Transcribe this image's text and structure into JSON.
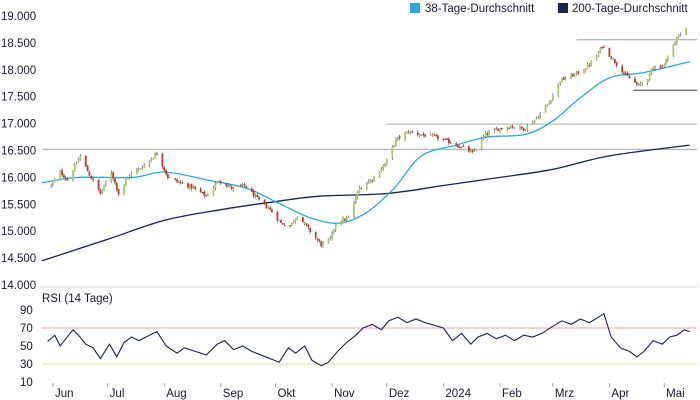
{
  "chart_data": [
    {
      "type": "candlestick",
      "y_ticks": [
        "19.000",
        "18.500",
        "18.000",
        "17.500",
        "17.000",
        "16.500",
        "16.000",
        "15.500",
        "15.000",
        "14.500",
        "14.000"
      ],
      "y_tick_values": [
        19000,
        18500,
        18000,
        17500,
        17000,
        16500,
        16000,
        15500,
        15000,
        14500,
        14000
      ],
      "ylim": [
        14000,
        19000
      ],
      "x_ticks": [
        "Jun",
        "Jul",
        "Aug",
        "Sep",
        "Okt",
        "Nov",
        "Dez",
        "2024",
        "Feb",
        "Mrz",
        "Apr",
        "Mai"
      ],
      "x_tick_dates": [
        "2023-06-01",
        "2023-07-01",
        "2023-08-01",
        "2023-09-01",
        "2023-10-01",
        "2023-11-01",
        "2023-12-01",
        "2024-01-01",
        "2024-02-01",
        "2024-03-01",
        "2024-04-01",
        "2024-05-01"
      ],
      "xlim": [
        "2023-05-26",
        "2024-05-19"
      ],
      "legend": [
        {
          "name": "38-Tage-Durchschnitt",
          "color": "#2aa8df"
        },
        {
          "name": "200-Tage-Durchschnitt",
          "color": "#17234f"
        }
      ],
      "legend_position": "top-right",
      "up_color": "#a9c76e",
      "down_color": "#c0392b",
      "ma38_color": "#2aa8df",
      "ma200_color": "#17234f",
      "resistance_levels": [
        {
          "value": 18560,
          "from": "2024-03-14",
          "to": "2024-05-19"
        },
        {
          "value": 17620,
          "from": "2024-04-14",
          "to": "2024-05-19"
        },
        {
          "value": 16990,
          "from": "2023-12-01",
          "to": "2024-05-19"
        },
        {
          "value": 16520,
          "from": "2023-05-26",
          "to": "2024-05-19"
        }
      ],
      "anchors": [
        [
          "2023-05-31",
          15850
        ],
        [
          "2023-06-05",
          16100
        ],
        [
          "2023-06-09",
          15950
        ],
        [
          "2023-06-16",
          16400
        ],
        [
          "2023-06-21",
          16050
        ],
        [
          "2023-06-27",
          15700
        ],
        [
          "2023-07-03",
          16100
        ],
        [
          "2023-07-07",
          15700
        ],
        [
          "2023-07-13",
          16050
        ],
        [
          "2023-07-20",
          16200
        ],
        [
          "2023-07-28",
          16450
        ],
        [
          "2023-08-03",
          16000
        ],
        [
          "2023-08-10",
          15900
        ],
        [
          "2023-08-17",
          15800
        ],
        [
          "2023-08-24",
          15650
        ],
        [
          "2023-08-31",
          15950
        ],
        [
          "2023-09-07",
          15800
        ],
        [
          "2023-09-14",
          15850
        ],
        [
          "2023-09-21",
          15600
        ],
        [
          "2023-09-28",
          15400
        ],
        [
          "2023-10-04",
          15150
        ],
        [
          "2023-10-09",
          15100
        ],
        [
          "2023-10-13",
          15300
        ],
        [
          "2023-10-20",
          15000
        ],
        [
          "2023-10-26",
          14750
        ],
        [
          "2023-10-31",
          14850
        ],
        [
          "2023-11-03",
          15150
        ],
        [
          "2023-11-10",
          15250
        ],
        [
          "2023-11-16",
          15800
        ],
        [
          "2023-11-24",
          16000
        ],
        [
          "2023-11-30",
          16250
        ],
        [
          "2023-12-06",
          16700
        ],
        [
          "2023-12-13",
          16850
        ],
        [
          "2023-12-19",
          16800
        ],
        [
          "2023-12-28",
          16750
        ],
        [
          "2024-01-05",
          16650
        ],
        [
          "2024-01-12",
          16550
        ],
        [
          "2024-01-17",
          16450
        ],
        [
          "2024-01-24",
          16800
        ],
        [
          "2024-01-31",
          16900
        ],
        [
          "2024-02-07",
          16950
        ],
        [
          "2024-02-14",
          16900
        ],
        [
          "2024-02-21",
          17100
        ],
        [
          "2024-02-28",
          17400
        ],
        [
          "2024-03-05",
          17800
        ],
        [
          "2024-03-12",
          17900
        ],
        [
          "2024-03-18",
          18000
        ],
        [
          "2024-03-25",
          18250
        ],
        [
          "2024-03-28",
          18450
        ],
        [
          "2024-04-04",
          18150
        ],
        [
          "2024-04-10",
          17900
        ],
        [
          "2024-04-17",
          17700
        ],
        [
          "2024-04-22",
          17850
        ],
        [
          "2024-04-26",
          18100
        ],
        [
          "2024-04-30",
          18050
        ],
        [
          "2024-05-03",
          18250
        ],
        [
          "2024-05-08",
          18600
        ],
        [
          "2024-05-13",
          18750
        ]
      ],
      "ma38_anchors": [
        [
          "2023-05-26",
          15900
        ],
        [
          "2023-06-15",
          16000
        ],
        [
          "2023-07-15",
          16000
        ],
        [
          "2023-08-01",
          16100
        ],
        [
          "2023-08-25",
          15950
        ],
        [
          "2023-09-15",
          15800
        ],
        [
          "2023-10-01",
          15550
        ],
        [
          "2023-10-20",
          15250
        ],
        [
          "2023-11-05",
          15150
        ],
        [
          "2023-11-20",
          15350
        ],
        [
          "2023-12-05",
          15800
        ],
        [
          "2023-12-20",
          16400
        ],
        [
          "2024-01-08",
          16600
        ],
        [
          "2024-01-25",
          16750
        ],
        [
          "2024-02-15",
          16800
        ],
        [
          "2024-03-01",
          17050
        ],
        [
          "2024-03-15",
          17450
        ],
        [
          "2024-04-01",
          17850
        ],
        [
          "2024-04-20",
          17950
        ],
        [
          "2024-05-15",
          18150
        ]
      ],
      "ma200_anchors": [
        [
          "2023-05-26",
          14450
        ],
        [
          "2023-07-01",
          14850
        ],
        [
          "2023-08-01",
          15200
        ],
        [
          "2023-09-01",
          15400
        ],
        [
          "2023-10-01",
          15550
        ],
        [
          "2023-10-25",
          15650
        ],
        [
          "2023-12-01",
          15700
        ],
        [
          "2024-01-01",
          15850
        ],
        [
          "2024-02-01",
          16000
        ],
        [
          "2024-03-01",
          16150
        ],
        [
          "2024-04-01",
          16400
        ],
        [
          "2024-05-15",
          16600
        ]
      ]
    },
    {
      "type": "line",
      "title": "RSI (14 Tage)",
      "y_ticks": [
        "90",
        "70",
        "50",
        "30",
        "10"
      ],
      "y_tick_values": [
        90,
        70,
        50,
        30,
        10
      ],
      "ylim": [
        10,
        90
      ],
      "overbought": 70,
      "oversold": 30,
      "overbought_color": "#f2a09c",
      "oversold_color": "#d8e2a0",
      "line_color": "#17234f",
      "anchors": [
        [
          "2023-05-29",
          55
        ],
        [
          "2023-06-02",
          62
        ],
        [
          "2023-06-05",
          50
        ],
        [
          "2023-06-08",
          58
        ],
        [
          "2023-06-12",
          68
        ],
        [
          "2023-06-15",
          62
        ],
        [
          "2023-06-19",
          52
        ],
        [
          "2023-06-23",
          48
        ],
        [
          "2023-06-27",
          36
        ],
        [
          "2023-07-02",
          52
        ],
        [
          "2023-07-06",
          38
        ],
        [
          "2023-07-10",
          54
        ],
        [
          "2023-07-14",
          60
        ],
        [
          "2023-07-18",
          56
        ],
        [
          "2023-07-24",
          62
        ],
        [
          "2023-07-28",
          66
        ],
        [
          "2023-08-02",
          50
        ],
        [
          "2023-08-08",
          42
        ],
        [
          "2023-08-12",
          48
        ],
        [
          "2023-08-18",
          44
        ],
        [
          "2023-08-24",
          40
        ],
        [
          "2023-08-30",
          52
        ],
        [
          "2023-09-03",
          56
        ],
        [
          "2023-09-08",
          46
        ],
        [
          "2023-09-13",
          50
        ],
        [
          "2023-09-18",
          44
        ],
        [
          "2023-09-23",
          40
        ],
        [
          "2023-09-28",
          36
        ],
        [
          "2023-10-03",
          32
        ],
        [
          "2023-10-08",
          48
        ],
        [
          "2023-10-12",
          42
        ],
        [
          "2023-10-17",
          50
        ],
        [
          "2023-10-21",
          34
        ],
        [
          "2023-10-26",
          28
        ],
        [
          "2023-10-30",
          32
        ],
        [
          "2023-11-04",
          44
        ],
        [
          "2023-11-09",
          54
        ],
        [
          "2023-11-14",
          62
        ],
        [
          "2023-11-18",
          70
        ],
        [
          "2023-11-23",
          74
        ],
        [
          "2023-11-28",
          68
        ],
        [
          "2023-12-02",
          78
        ],
        [
          "2023-12-07",
          82
        ],
        [
          "2023-12-12",
          76
        ],
        [
          "2023-12-17",
          80
        ],
        [
          "2023-12-22",
          76
        ],
        [
          "2024-01-01",
          70
        ],
        [
          "2024-01-06",
          56
        ],
        [
          "2024-01-11",
          64
        ],
        [
          "2024-01-16",
          52
        ],
        [
          "2024-01-20",
          60
        ],
        [
          "2024-01-25",
          64
        ],
        [
          "2024-01-30",
          58
        ],
        [
          "2024-02-04",
          62
        ],
        [
          "2024-02-09",
          56
        ],
        [
          "2024-02-14",
          62
        ],
        [
          "2024-02-19",
          60
        ],
        [
          "2024-02-24",
          64
        ],
        [
          "2024-03-01",
          72
        ],
        [
          "2024-03-06",
          78
        ],
        [
          "2024-03-11",
          74
        ],
        [
          "2024-03-16",
          80
        ],
        [
          "2024-03-21",
          76
        ],
        [
          "2024-03-26",
          82
        ],
        [
          "2024-03-29",
          86
        ],
        [
          "2024-04-02",
          60
        ],
        [
          "2024-04-07",
          48
        ],
        [
          "2024-04-12",
          44
        ],
        [
          "2024-04-16",
          38
        ],
        [
          "2024-04-20",
          44
        ],
        [
          "2024-04-25",
          56
        ],
        [
          "2024-04-30",
          52
        ],
        [
          "2024-05-04",
          60
        ],
        [
          "2024-05-08",
          62
        ],
        [
          "2024-05-12",
          68
        ],
        [
          "2024-05-15",
          66
        ]
      ]
    }
  ]
}
